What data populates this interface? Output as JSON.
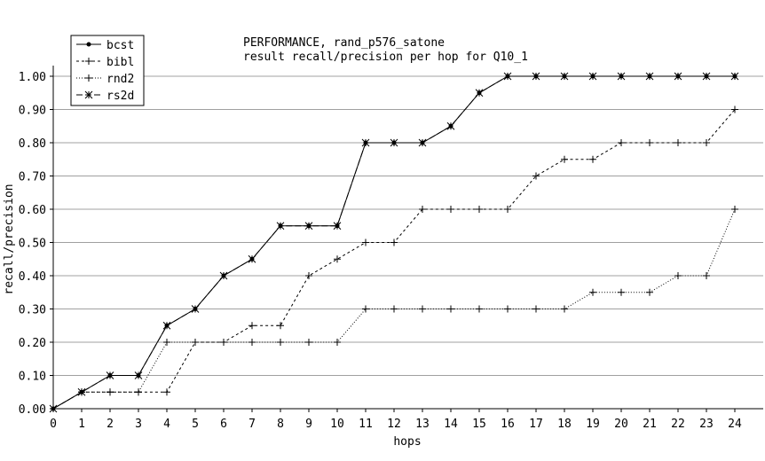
{
  "chart_data": {
    "type": "line",
    "title": "PERFORMANCE, rand_p576_satone",
    "subtitle": "result recall/precision per hop for Q10_1",
    "xlabel": "hops",
    "ylabel": "recall/precision",
    "xlim": [
      0,
      24
    ],
    "ylim": [
      0,
      1
    ],
    "grid": true,
    "legend_position": "top-left",
    "x": [
      0,
      1,
      2,
      3,
      4,
      5,
      6,
      7,
      8,
      9,
      10,
      11,
      12,
      13,
      14,
      15,
      16,
      17,
      18,
      19,
      20,
      21,
      22,
      23,
      24
    ],
    "x_ticks": [
      "0",
      "1",
      "2",
      "3",
      "4",
      "5",
      "6",
      "7",
      "8",
      "9",
      "10",
      "11",
      "12",
      "13",
      "14",
      "15",
      "16",
      "17",
      "18",
      "19",
      "20",
      "21",
      "22",
      "23",
      "24"
    ],
    "y_ticks": [
      "0.00",
      "0.10",
      "0.20",
      "0.30",
      "0.40",
      "0.50",
      "0.60",
      "0.70",
      "0.80",
      "0.90",
      "1.00"
    ],
    "series": [
      {
        "name": "bcst",
        "marker": "dot",
        "dash": "solid",
        "values": [
          0,
          0.05,
          0.1,
          0.1,
          0.25,
          0.3,
          0.4,
          0.45,
          0.55,
          0.55,
          0.55,
          0.8,
          0.8,
          0.8,
          0.85,
          0.95,
          1.0,
          1.0,
          1.0,
          1.0,
          1.0,
          1.0,
          1.0,
          1.0,
          1.0
        ]
      },
      {
        "name": "bibl",
        "marker": "plus",
        "dash": "dashed",
        "values": [
          0,
          0.05,
          0.05,
          0.05,
          0.05,
          0.2,
          0.2,
          0.25,
          0.25,
          0.4,
          0.45,
          0.5,
          0.5,
          0.6,
          0.6,
          0.6,
          0.6,
          0.7,
          0.75,
          0.75,
          0.8,
          0.8,
          0.8,
          0.8,
          0.9
        ]
      },
      {
        "name": "rnd2",
        "marker": "plus",
        "dash": "dotted",
        "values": [
          0,
          0.05,
          0.05,
          0.05,
          0.2,
          0.2,
          0.2,
          0.2,
          0.2,
          0.2,
          0.2,
          0.3,
          0.3,
          0.3,
          0.3,
          0.3,
          0.3,
          0.3,
          0.3,
          0.35,
          0.35,
          0.35,
          0.4,
          0.4,
          0.6
        ]
      },
      {
        "name": "rs2d",
        "marker": "star",
        "dash": "longdash",
        "values": [
          0,
          0.05,
          0.1,
          0.1,
          0.25,
          0.3,
          0.4,
          0.45,
          0.55,
          0.55,
          0.55,
          0.8,
          0.8,
          0.8,
          0.85,
          0.95,
          1.0,
          1.0,
          1.0,
          1.0,
          1.0,
          1.0,
          1.0,
          1.0,
          1.0
        ]
      }
    ]
  }
}
